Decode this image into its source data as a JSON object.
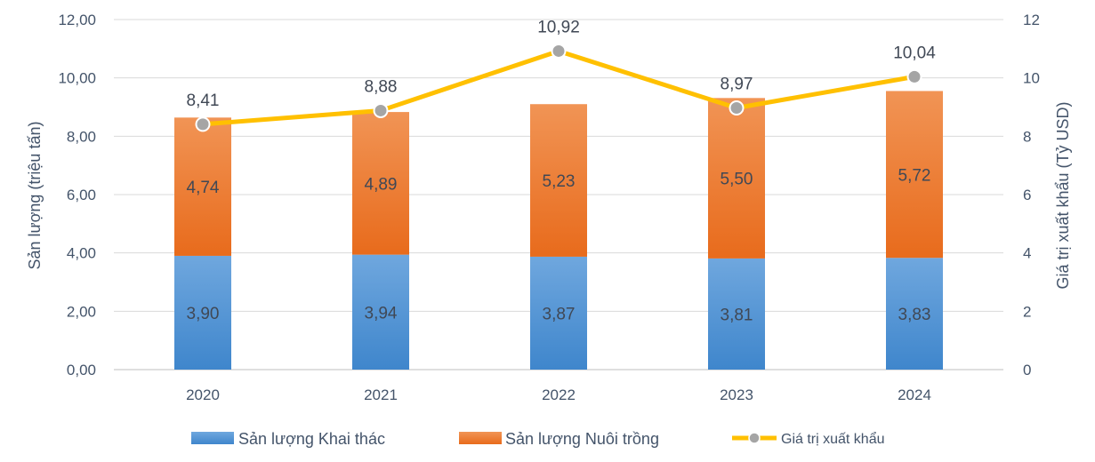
{
  "chart_data": {
    "type": "bar",
    "stacked": true,
    "categories": [
      "2020",
      "2021",
      "2022",
      "2023",
      "2024"
    ],
    "series": [
      {
        "name": "Sản lượng Khai thác",
        "kind": "bar",
        "axis": "left",
        "color": "#5b9bd5",
        "values": [
          3.9,
          3.94,
          3.87,
          3.81,
          3.83
        ],
        "labels": [
          "3,90",
          "3,94",
          "3,87",
          "3,81",
          "3,83"
        ]
      },
      {
        "name": "Sản lượng Nuôi trồng",
        "kind": "bar",
        "axis": "left",
        "color": "#ed7d31",
        "values": [
          4.74,
          4.89,
          5.23,
          5.5,
          5.72
        ],
        "labels": [
          "4,74",
          "4,89",
          "5,23",
          "5,50",
          "5,72"
        ]
      },
      {
        "name": "Giá trị xuất khẩu",
        "kind": "line",
        "axis": "right",
        "color": "#ffc000",
        "marker_color": "#a5a5a5",
        "values": [
          8.41,
          8.88,
          10.92,
          8.97,
          10.04
        ],
        "labels": [
          "8,41",
          "8,88",
          "10,92",
          "8,97",
          "10,04"
        ]
      }
    ],
    "ylabel": "Sản lượng (triệu tấn)",
    "ylabel_right": "Giá trị xuất khẩu (Tỷ USD)",
    "ylim": [
      0,
      12
    ],
    "ylim_right": [
      0,
      12
    ],
    "yticks": [
      "0,00",
      "2,00",
      "4,00",
      "6,00",
      "8,00",
      "10,00",
      "12,00"
    ],
    "yticks_right": [
      "0",
      "2",
      "4",
      "6",
      "8",
      "10",
      "12"
    ],
    "grid": true,
    "legend_position": "bottom"
  }
}
